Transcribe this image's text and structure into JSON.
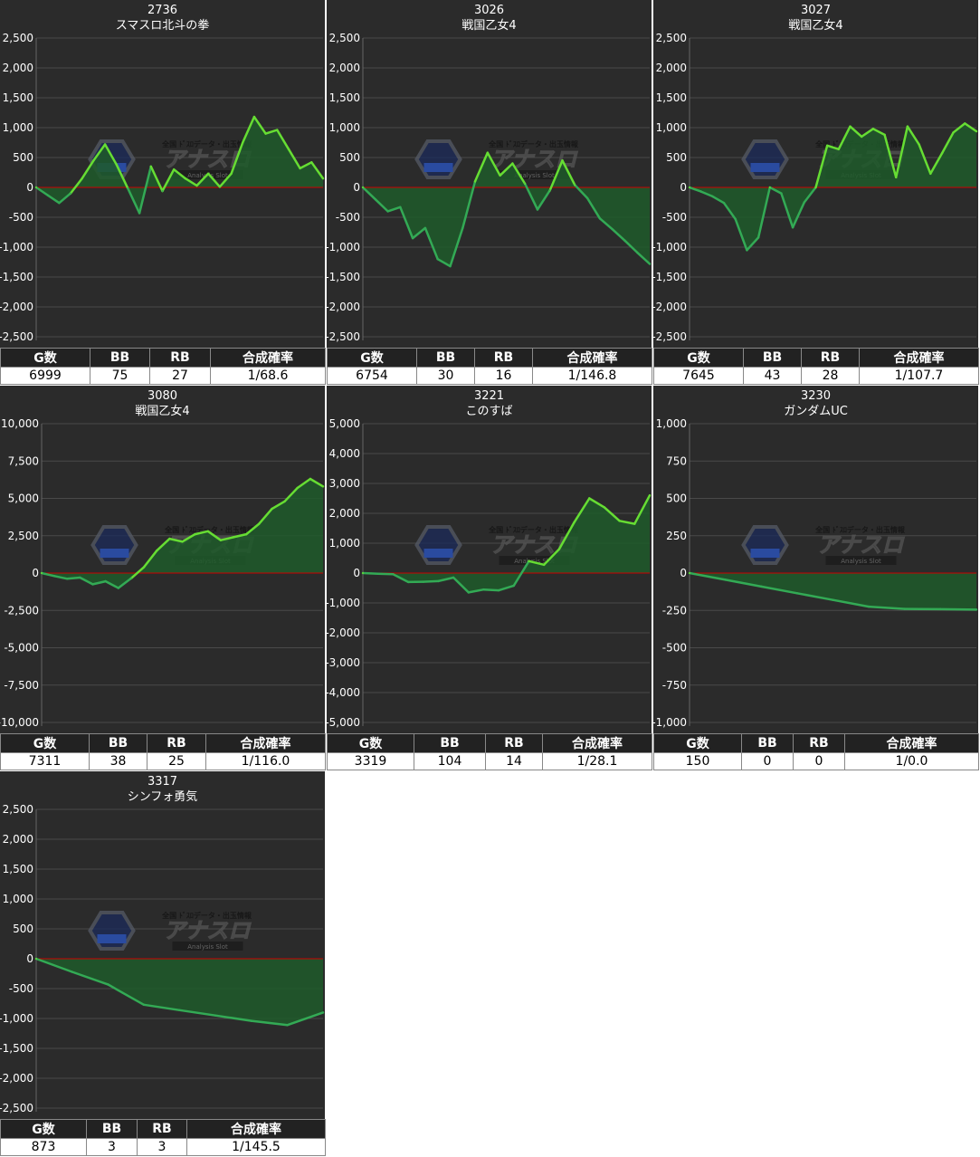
{
  "colors": {
    "background": "#2b2b2b",
    "grid": "#4a4a4a",
    "axis_text": "#ffffff",
    "zero_line": "#cc0000",
    "line_positive": "#66dd33",
    "line_negative": "#33aa55",
    "area_fill": "#1f5a2a",
    "table_header_bg": "#222222",
    "table_cell_bg": "#ffffff"
  },
  "table_headers": [
    "G数",
    "BB",
    "RB",
    "合成確率"
  ],
  "watermark": {
    "top_text": "全国 ﾄﾞｽﾛデータ・出玉情報",
    "main_text": "アナスロ",
    "sub_text": "Analysis Slot",
    "icon": "hexagon-logo-icon"
  },
  "panels": [
    {
      "number": "2736",
      "name": "スマスロ北斗の拳",
      "stats": {
        "games": "6999",
        "bb": "75",
        "rb": "27",
        "rate": "1/68.6"
      },
      "chart_data": {
        "type": "area",
        "y_ticks": [
          "2,500",
          "2,000",
          "1,500",
          "1,000",
          "500",
          "0",
          "-500",
          "-1,000",
          "-1,500",
          "-2,000",
          "-2,500"
        ],
        "ylim": [
          -2500,
          2500
        ],
        "grid": true,
        "values": [
          0,
          -130,
          -260,
          -100,
          150,
          450,
          720,
          380,
          -20,
          -430,
          350,
          -60,
          300,
          150,
          30,
          230,
          10,
          230,
          750,
          1180,
          900,
          960,
          640,
          320,
          420,
          150
        ]
      }
    },
    {
      "number": "3026",
      "name": "戦国乙女4",
      "stats": {
        "games": "6754",
        "bb": "30",
        "rb": "16",
        "rate": "1/146.8"
      },
      "chart_data": {
        "type": "area",
        "y_ticks": [
          "2,500",
          "2,000",
          "1,500",
          "1,000",
          "500",
          "0",
          "-500",
          "-1,000",
          "-1,500",
          "-2,000",
          "-2,500"
        ],
        "ylim": [
          -2500,
          2500
        ],
        "grid": true,
        "values": [
          0,
          -200,
          -400,
          -330,
          -850,
          -680,
          -1200,
          -1320,
          -680,
          100,
          580,
          200,
          400,
          60,
          -370,
          -50,
          450,
          40,
          -180,
          -520,
          -700,
          -890,
          -1090,
          -1280
        ]
      }
    },
    {
      "number": "3027",
      "name": "戦国乙女4",
      "stats": {
        "games": "7645",
        "bb": "43",
        "rb": "28",
        "rate": "1/107.7"
      },
      "chart_data": {
        "type": "area",
        "y_ticks": [
          "2,500",
          "2,000",
          "1,500",
          "1,000",
          "500",
          "0",
          "-500",
          "-1,000",
          "-1,500",
          "-2,000",
          "-2,500"
        ],
        "ylim": [
          -2500,
          2500
        ],
        "grid": true,
        "values": [
          0,
          -70,
          -150,
          -260,
          -530,
          -1050,
          -840,
          0,
          -100,
          -670,
          -250,
          0,
          700,
          640,
          1020,
          850,
          980,
          880,
          170,
          1020,
          720,
          230,
          570,
          920,
          1070,
          940
        ]
      }
    },
    {
      "number": "3080",
      "name": "戦国乙女4",
      "stats": {
        "games": "7311",
        "bb": "38",
        "rb": "25",
        "rate": "1/116.0"
      },
      "chart_data": {
        "type": "area",
        "y_ticks": [
          "10,000",
          "7,500",
          "5,000",
          "2,500",
          "0",
          "-2,500",
          "-5,000",
          "-7,500",
          "-10,000"
        ],
        "ylim": [
          -10000,
          10000
        ],
        "grid": true,
        "values": [
          0,
          -200,
          -380,
          -300,
          -750,
          -550,
          -1000,
          -350,
          400,
          1500,
          2300,
          2100,
          2600,
          2800,
          2200,
          2400,
          2600,
          3300,
          4300,
          4800,
          5700,
          6300,
          5800
        ]
      }
    },
    {
      "number": "3221",
      "name": "このすば",
      "stats": {
        "games": "3319",
        "bb": "104",
        "rb": "14",
        "rate": "1/28.1"
      },
      "chart_data": {
        "type": "area",
        "y_ticks": [
          "5,000",
          "4,000",
          "3,000",
          "2,000",
          "1,000",
          "0",
          "-1,000",
          "-2,000",
          "-3,000",
          "-4,000",
          "-5,000"
        ],
        "ylim": [
          -5000,
          5000
        ],
        "grid": true,
        "values": [
          0,
          -20,
          -40,
          -300,
          -290,
          -270,
          -150,
          -650,
          -550,
          -580,
          -420,
          400,
          280,
          800,
          1700,
          2500,
          2200,
          1750,
          1650,
          2600
        ]
      }
    },
    {
      "number": "3230",
      "name": "ガンダムUC",
      "stats": {
        "games": "150",
        "bb": "0",
        "rb": "0",
        "rate": "1/0.0"
      },
      "chart_data": {
        "type": "area",
        "y_ticks": [
          "1,000",
          "750",
          "500",
          "250",
          "0",
          "-250",
          "-500",
          "-750",
          "-1,000"
        ],
        "ylim": [
          -1000,
          1000
        ],
        "grid": true,
        "values": [
          0,
          -45,
          -90,
          -135,
          -180,
          -225,
          -240,
          -242,
          -245
        ]
      }
    },
    {
      "number": "3317",
      "name": "シンフォ勇気",
      "stats": {
        "games": "873",
        "bb": "3",
        "rb": "3",
        "rate": "1/145.5"
      },
      "chart_data": {
        "type": "area",
        "y_ticks": [
          "2,500",
          "2,000",
          "1,500",
          "1,000",
          "500",
          "0",
          "-500",
          "-1,000",
          "-1,500",
          "-2,000",
          "-2,500"
        ],
        "ylim": [
          -2500,
          2500
        ],
        "grid": true,
        "values": [
          0,
          -220,
          -430,
          -770,
          -860,
          -950,
          -1040,
          -1110,
          -900
        ]
      }
    }
  ]
}
